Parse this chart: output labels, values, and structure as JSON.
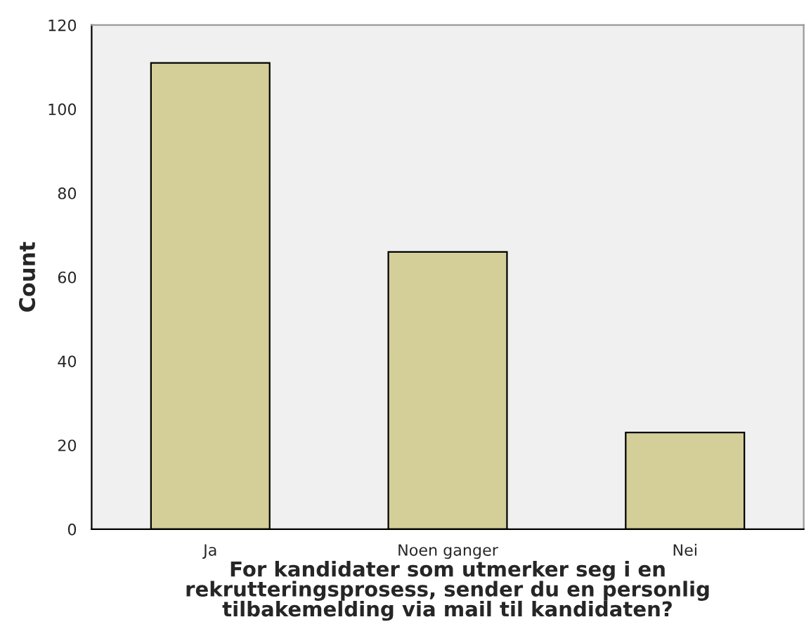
{
  "chart_data": {
    "type": "bar",
    "categories": [
      "Ja",
      "Noen ganger",
      "Nei"
    ],
    "series": [
      {
        "color": "#d4cf98",
        "values": [
          111,
          66,
          23
        ]
      }
    ],
    "xlabel": "For kandidater som utmerker seg i en\nrekrutteringsprosess, sender du en personlig\ntilbakemelding via mail til kandidaten?",
    "ylabel": "Count",
    "ylim": [
      0,
      120
    ],
    "yticks": [
      0,
      20,
      40,
      60,
      80,
      100,
      120
    ],
    "grid": false,
    "legend": false
  }
}
